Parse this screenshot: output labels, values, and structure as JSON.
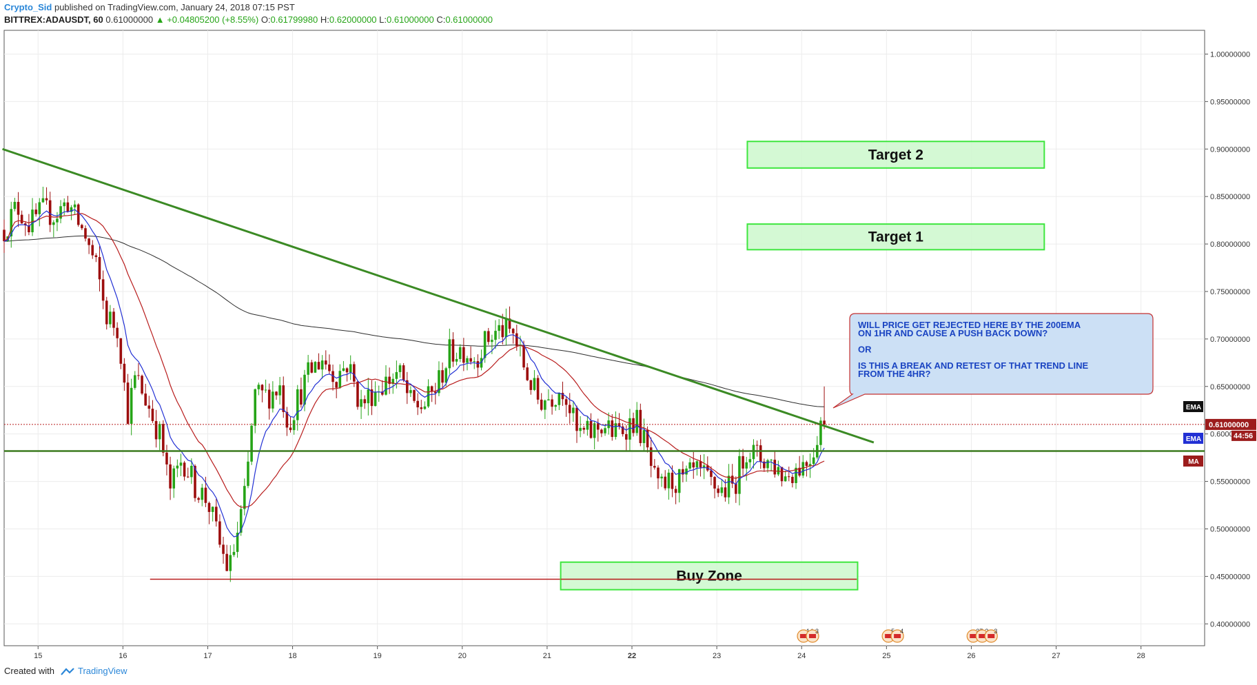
{
  "header": {
    "author": "Crypto_Sid",
    "published": "published on TradingView.com, January 24, 2018 07:15 PST",
    "symbol": "BITTREX:ADAUSDT, 60",
    "last": "0.61000000",
    "change_arrow": "▲",
    "change": "+0.04805200 (+8.55%)",
    "o_label": "O:",
    "o_value": "0.61799980",
    "h_label": "H:",
    "h_value": "0.62000000",
    "l_label": "L:",
    "l_value": "0.61000000",
    "c_label": "C:",
    "c_value": "0.61000000"
  },
  "footer": {
    "created_with": "Created with",
    "brand": "TradingView"
  },
  "colors": {
    "up": "#26a417",
    "down": "#9c0d0d",
    "ema_fast": "#2230d4",
    "ma": "#b81c1c",
    "ema_slow": "#2c2c2c",
    "trendline": "#3b8a24",
    "support": "#3b7a1e",
    "buyline": "#b81c1c",
    "zone_fill": "#ccf8cc",
    "zone_border": "#3ee63e",
    "callout_fill": "#cce0f5",
    "callout_border": "#c43030",
    "callout_text": "#1a44c2"
  },
  "chart_data": {
    "type": "candlestick",
    "symbol": "ADAUSDT",
    "interval": "60",
    "x_ticks": [
      "15",
      "16",
      "17",
      "18",
      "19",
      "20",
      "21",
      "22",
      "23",
      "24",
      "25",
      "26",
      "27",
      "28",
      "18:"
    ],
    "x_range": [
      14.6,
      28.75
    ],
    "y_ticks": [
      "1.00000000",
      "0.95000000",
      "0.90000000",
      "0.85000000",
      "0.80000000",
      "0.75000000",
      "0.70000000",
      "0.65000000",
      "0.60000000",
      "0.55000000",
      "0.50000000",
      "0.45000000",
      "0.40000000"
    ],
    "ylim": [
      0.377,
      1.025
    ],
    "last_price": "0.61000000",
    "countdown": "44:56",
    "price_labels": [
      "EMA",
      "EMA",
      "MA"
    ],
    "trend_line": [
      [
        14.58,
        0.9
      ],
      [
        24.85,
        0.591
      ]
    ],
    "support_level": 0.582,
    "buy_line": {
      "price": 0.447,
      "x": [
        16.32,
        24.65
      ]
    },
    "zones": [
      {
        "label": "Target 2",
        "x": [
          23.36,
          26.86
        ],
        "y": [
          0.88,
          0.908
        ]
      },
      {
        "label": "Target 1",
        "x": [
          23.36,
          26.86
        ],
        "y": [
          0.794,
          0.821
        ]
      },
      {
        "label": "Buy Zone",
        "x": [
          21.16,
          24.66
        ],
        "y": [
          0.436,
          0.465
        ]
      }
    ],
    "callout": {
      "lines": [
        "WILL PRICE GET REJECTED HERE BY THE 200EMA",
        "ON 1HR AND CAUSE A PUSH BACK DOWN?",
        "",
        "OR",
        "",
        "IS THIS A BREAK AND RETEST OF THAT TREND LINE",
        "FROM THE 4HR?"
      ]
    },
    "events": [
      {
        "x": 24.25,
        "labels": [
          "14",
          "3"
        ]
      },
      {
        "x": 25.25,
        "labels": [
          "5",
          "4"
        ]
      },
      {
        "x": 26.25,
        "labels": [
          "37",
          "2",
          "3"
        ]
      }
    ],
    "price_path": [
      [
        14.6,
        0.815
      ],
      [
        14.75,
        0.84
      ],
      [
        14.9,
        0.82
      ],
      [
        15.05,
        0.835
      ],
      [
        15.2,
        0.83
      ],
      [
        15.35,
        0.845
      ],
      [
        15.45,
        0.825
      ],
      [
        15.55,
        0.81
      ],
      [
        15.7,
        0.77
      ],
      [
        15.8,
        0.725
      ],
      [
        15.95,
        0.71
      ],
      [
        16.05,
        0.62
      ],
      [
        16.15,
        0.66
      ],
      [
        16.3,
        0.63
      ],
      [
        16.45,
        0.595
      ],
      [
        16.55,
        0.54
      ],
      [
        16.7,
        0.575
      ],
      [
        16.85,
        0.545
      ],
      [
        17.0,
        0.53
      ],
      [
        17.15,
        0.48
      ],
      [
        17.25,
        0.455
      ],
      [
        17.35,
        0.495
      ],
      [
        17.45,
        0.54
      ],
      [
        17.55,
        0.64
      ],
      [
        17.7,
        0.64
      ],
      [
        17.85,
        0.65
      ],
      [
        17.95,
        0.61
      ],
      [
        18.05,
        0.635
      ],
      [
        18.2,
        0.665
      ],
      [
        18.35,
        0.68
      ],
      [
        18.5,
        0.66
      ],
      [
        18.65,
        0.675
      ],
      [
        18.8,
        0.63
      ],
      [
        18.95,
        0.645
      ],
      [
        19.1,
        0.655
      ],
      [
        19.25,
        0.665
      ],
      [
        19.4,
        0.63
      ],
      [
        19.55,
        0.63
      ],
      [
        19.7,
        0.65
      ],
      [
        19.85,
        0.685
      ],
      [
        20.0,
        0.69
      ],
      [
        20.15,
        0.68
      ],
      [
        20.3,
        0.7
      ],
      [
        20.45,
        0.71
      ],
      [
        20.6,
        0.705
      ],
      [
        20.75,
        0.665
      ],
      [
        20.9,
        0.635
      ],
      [
        21.05,
        0.64
      ],
      [
        21.2,
        0.65
      ],
      [
        21.35,
        0.6
      ],
      [
        21.5,
        0.6
      ],
      [
        21.65,
        0.61
      ],
      [
        21.8,
        0.6
      ],
      [
        21.95,
        0.61
      ],
      [
        22.05,
        0.615
      ],
      [
        22.15,
        0.59
      ],
      [
        22.3,
        0.54
      ],
      [
        22.45,
        0.55
      ],
      [
        22.6,
        0.55
      ],
      [
        22.75,
        0.56
      ],
      [
        22.9,
        0.55
      ],
      [
        23.05,
        0.54
      ],
      [
        23.2,
        0.545
      ],
      [
        23.35,
        0.585
      ],
      [
        23.5,
        0.575
      ],
      [
        23.65,
        0.57
      ],
      [
        23.8,
        0.555
      ],
      [
        23.95,
        0.565
      ],
      [
        24.05,
        0.57
      ],
      [
        24.15,
        0.585
      ],
      [
        24.22,
        0.615
      ],
      [
        24.3,
        0.61
      ]
    ]
  }
}
